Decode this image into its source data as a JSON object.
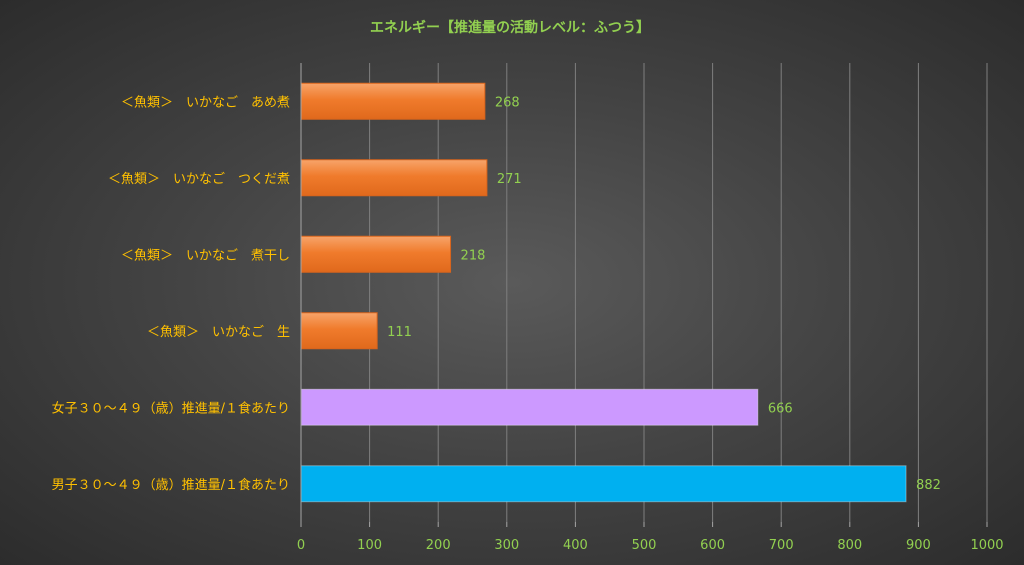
{
  "chart_data": {
    "type": "bar",
    "orientation": "horizontal",
    "title": "エネルギー【推進量の活動レベル：ふつう】",
    "categories": [
      "＜魚類＞　いかなご　あめ煮",
      "＜魚類＞　いかなご　つくだ煮",
      "＜魚類＞　いかなご　煮干し",
      "＜魚類＞　いかなご　生",
      "女子３０～４９（歳）推進量/１食あたり",
      "男子３０～４９（歳）推進量/１食あたり"
    ],
    "values": [
      268,
      271,
      218,
      111,
      666,
      882
    ],
    "bar_colors": [
      "#f07b2c",
      "#f07b2c",
      "#f07b2c",
      "#f07b2c",
      "#cc99ff",
      "#00b0f0"
    ],
    "xlim": [
      0,
      1000
    ],
    "xticks": [
      0,
      100,
      200,
      300,
      400,
      500,
      600,
      700,
      800,
      900,
      1000
    ],
    "grid": true,
    "legend": "none",
    "colors": {
      "title": "#92d050",
      "category_label": "#ffc000",
      "value_label": "#92d050",
      "tick_label": "#92d050",
      "grid": "#7f7f7f"
    }
  }
}
